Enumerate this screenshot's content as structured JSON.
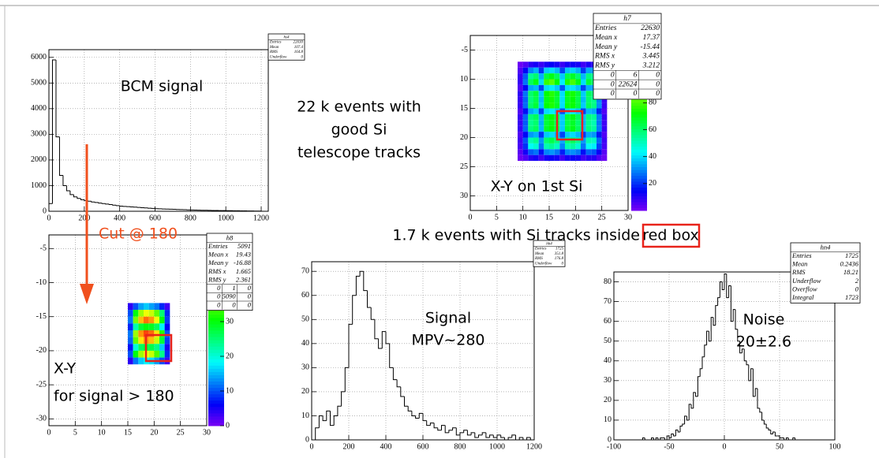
{
  "chart_data": [
    {
      "type": "histogram",
      "name": "hs4",
      "color": "#000000",
      "grid": true,
      "stats": {
        "rows": [
          {
            "label": "Entries",
            "value": 22630
          },
          {
            "label": "Mean",
            "value": 107.4
          },
          {
            "label": "RMS",
            "value": 164.8
          },
          {
            "label": "Underflow",
            "value": 0
          }
        ]
      },
      "annotations": [
        "BCM signal"
      ],
      "bins": [
        0,
        20,
        40,
        60,
        80,
        100,
        120,
        140,
        160,
        180,
        200,
        220,
        240,
        260,
        280,
        300,
        320,
        340,
        360,
        380,
        400,
        420,
        440,
        460,
        480,
        500,
        520,
        540,
        560,
        580,
        600,
        620,
        640,
        660,
        680,
        700,
        720,
        740,
        760,
        780,
        800,
        820,
        840,
        860,
        880,
        900,
        920,
        940,
        960,
        980,
        1000,
        1020,
        1040,
        1060,
        1080,
        1100,
        1120,
        1140,
        1160,
        1180,
        1200
      ],
      "values": [
        300,
        5900,
        2900,
        1400,
        1000,
        800,
        650,
        560,
        500,
        450,
        420,
        390,
        360,
        340,
        320,
        300,
        280,
        260,
        240,
        220,
        200,
        190,
        180,
        170,
        160,
        150,
        140,
        130,
        120,
        110,
        100,
        95,
        90,
        85,
        80,
        75,
        70,
        65,
        60,
        55,
        50,
        45,
        42,
        40,
        38,
        35,
        32,
        30,
        28,
        26,
        24,
        22,
        20,
        18,
        16,
        14,
        12,
        10,
        8,
        6
      ],
      "xlim": [
        0,
        1240
      ],
      "ylim": [
        0,
        6300
      ],
      "xticks": [
        0,
        200,
        400,
        600,
        800,
        1000,
        1200
      ],
      "yticks": [
        0,
        1000,
        2000,
        3000,
        4000,
        5000,
        6000
      ]
    },
    {
      "type": "heatmap",
      "name": "h7",
      "grid": true,
      "stats": {
        "rows": [
          {
            "label": "Entries",
            "value": 22630
          },
          {
            "label": "Mean x",
            "value": 17.37
          },
          {
            "label": "Mean y",
            "value": -15.44
          },
          {
            "label": "RMS x",
            "value": 3.445
          },
          {
            "label": "RMS y",
            "value": 3.212
          }
        ],
        "grid": [
          [
            0,
            6,
            0
          ],
          [
            0,
            22624,
            0
          ],
          [
            0,
            0,
            0
          ]
        ]
      },
      "annotations": [
        "X-Y on 1st Si"
      ],
      "xbins": [
        9,
        10,
        11,
        12,
        13,
        14,
        15,
        16,
        17,
        18,
        19,
        20,
        21,
        22,
        23,
        24,
        25,
        26
      ],
      "ybins": [
        -7,
        -8,
        -9,
        -10,
        -11,
        -12,
        -13,
        -14,
        -15,
        -16,
        -17,
        -18,
        -19,
        -20,
        -21,
        -22,
        -23,
        -24
      ],
      "z": [
        [
          2,
          5,
          10,
          12,
          8,
          12,
          14,
          12,
          8,
          12,
          13,
          12,
          7,
          11,
          10,
          6,
          2
        ],
        [
          5,
          15,
          30,
          35,
          20,
          38,
          40,
          36,
          22,
          37,
          39,
          35,
          21,
          34,
          32,
          18,
          5
        ],
        [
          8,
          25,
          55,
          60,
          35,
          65,
          70,
          62,
          38,
          64,
          68,
          60,
          36,
          58,
          55,
          30,
          8
        ],
        [
          8,
          28,
          62,
          70,
          40,
          78,
          82,
          72,
          42,
          75,
          80,
          70,
          40,
          66,
          60,
          32,
          8
        ],
        [
          5,
          15,
          34,
          36,
          22,
          40,
          42,
          38,
          24,
          40,
          41,
          37,
          22,
          35,
          33,
          18,
          5
        ],
        [
          9,
          28,
          60,
          66,
          38,
          72,
          76,
          68,
          40,
          70,
          74,
          66,
          38,
          62,
          58,
          30,
          8
        ],
        [
          8,
          26,
          58,
          64,
          36,
          70,
          74,
          66,
          40,
          68,
          72,
          64,
          36,
          60,
          56,
          30,
          8
        ],
        [
          8,
          27,
          60,
          66,
          38,
          72,
          75,
          68,
          40,
          70,
          73,
          65,
          38,
          62,
          57,
          31,
          8
        ],
        [
          5,
          16,
          34,
          38,
          22,
          40,
          42,
          38,
          24,
          40,
          42,
          38,
          22,
          36,
          34,
          18,
          5
        ],
        [
          8,
          26,
          58,
          62,
          36,
          68,
          72,
          64,
          38,
          66,
          70,
          62,
          36,
          58,
          55,
          29,
          8
        ],
        [
          8,
          25,
          56,
          60,
          35,
          66,
          70,
          62,
          38,
          64,
          68,
          60,
          35,
          56,
          52,
          28,
          7
        ],
        [
          8,
          26,
          58,
          62,
          36,
          68,
          72,
          64,
          38,
          66,
          70,
          62,
          36,
          58,
          54,
          29,
          8
        ],
        [
          5,
          15,
          32,
          35,
          20,
          38,
          40,
          36,
          22,
          38,
          40,
          36,
          21,
          34,
          32,
          17,
          5
        ],
        [
          7,
          24,
          52,
          56,
          32,
          60,
          64,
          58,
          34,
          60,
          62,
          56,
          32,
          52,
          50,
          26,
          7
        ],
        [
          6,
          20,
          44,
          48,
          28,
          52,
          55,
          50,
          30,
          52,
          54,
          48,
          28,
          44,
          42,
          22,
          6
        ],
        [
          4,
          12,
          25,
          28,
          16,
          30,
          32,
          28,
          18,
          30,
          31,
          28,
          16,
          26,
          24,
          13,
          4
        ],
        [
          2,
          5,
          10,
          12,
          7,
          12,
          13,
          12,
          7,
          12,
          13,
          12,
          7,
          10,
          10,
          5,
          2
        ]
      ],
      "xlim": [
        0,
        30
      ],
      "ylim": [
        -32.5,
        -2.5
      ],
      "zlim": [
        0,
        130
      ],
      "xticks": [
        0,
        5,
        10,
        15,
        20,
        25,
        30
      ],
      "yticks": [
        -5,
        {
          "value": -10,
          "label": "10"
        },
        {
          "value": -15,
          "label": "15"
        },
        {
          "value": -20,
          "label": "20"
        },
        {
          "value": -25,
          "label": "25"
        },
        {
          "value": -30,
          "label": "30"
        }
      ],
      "zticks": [
        20,
        40,
        60,
        80
      ]
    },
    {
      "type": "heatmap",
      "name": "h8",
      "grid": true,
      "stats": {
        "rows": [
          {
            "label": "Entries",
            "value": 5091
          },
          {
            "label": "Mean x",
            "value": 19.43
          },
          {
            "label": "Mean y",
            "value": -16.88
          },
          {
            "label": "RMS x",
            "value": 1.665
          },
          {
            "label": "RMS y",
            "value": 2.361
          }
        ],
        "grid": [
          [
            0,
            1,
            0
          ],
          [
            0,
            5090,
            0
          ],
          [
            0,
            0,
            0
          ]
        ]
      },
      "annotations": [
        "X-Y",
        "for signal > 180"
      ],
      "xbins": [
        15,
        16,
        17,
        18,
        19,
        20,
        21,
        22,
        23
      ],
      "ybins": [
        -13,
        -14,
        -15,
        -16,
        -17,
        -18,
        -19,
        -20,
        -21,
        -22
      ],
      "z": [
        [
          4,
          10,
          14,
          16,
          14,
          12,
          8,
          3
        ],
        [
          10,
          30,
          38,
          42,
          40,
          35,
          25,
          8
        ],
        [
          12,
          36,
          46,
          50,
          48,
          42,
          30,
          9
        ],
        [
          8,
          22,
          28,
          30,
          29,
          26,
          18,
          6
        ],
        [
          12,
          38,
          48,
          52,
          50,
          44,
          32,
          10
        ],
        [
          11,
          35,
          44,
          48,
          46,
          40,
          28,
          9
        ],
        [
          7,
          20,
          26,
          28,
          27,
          24,
          16,
          5
        ],
        [
          10,
          30,
          38,
          42,
          40,
          34,
          24,
          8
        ],
        [
          4,
          12,
          16,
          18,
          17,
          14,
          10,
          3
        ]
      ],
      "xlim": [
        0,
        30
      ],
      "ylim": [
        -31,
        -3
      ],
      "zlim": [
        0,
        55
      ],
      "xticks": [
        0,
        5,
        10,
        15,
        20,
        25,
        30
      ],
      "yticks": [
        -5,
        -10,
        -15,
        -20,
        -25,
        -30
      ],
      "zticks": [
        0,
        10,
        20,
        30,
        40,
        50
      ]
    },
    {
      "type": "histogram",
      "name": "hh4",
      "color": "#000000",
      "grid": true,
      "stats": {
        "rows": [
          {
            "label": "Entries",
            "value": 1725
          },
          {
            "label": "Mean",
            "value": 351.8
          },
          {
            "label": "RMS",
            "value": 176.8
          },
          {
            "label": "Underflow",
            "value": 0
          }
        ]
      },
      "annotations": [
        "Signal",
        "MPV~280"
      ],
      "bins": [
        0,
        20,
        40,
        60,
        80,
        100,
        120,
        140,
        160,
        180,
        200,
        220,
        240,
        260,
        280,
        300,
        320,
        340,
        360,
        380,
        400,
        420,
        440,
        460,
        480,
        500,
        520,
        540,
        560,
        580,
        600,
        620,
        640,
        660,
        680,
        700,
        720,
        740,
        760,
        780,
        800,
        820,
        840,
        860,
        880,
        900,
        920,
        940,
        960,
        980,
        1000,
        1020,
        1040,
        1060,
        1080,
        1100,
        1120,
        1140,
        1160,
        1180,
        1200
      ],
      "values": [
        0,
        5,
        10,
        8,
        12,
        6,
        10,
        14,
        20,
        30,
        48,
        60,
        68,
        70,
        62,
        55,
        50,
        42,
        38,
        45,
        40,
        30,
        25,
        22,
        18,
        14,
        12,
        10,
        9,
        11,
        8,
        6,
        7,
        5,
        4,
        6,
        3,
        4,
        5,
        2,
        3,
        4,
        2,
        3,
        1,
        2,
        3,
        1,
        2,
        1,
        2,
        1,
        0,
        1,
        2,
        0,
        1,
        0,
        1,
        0
      ],
      "xlim": [
        0,
        1200
      ],
      "ylim": [
        0,
        74
      ],
      "xticks": [
        0,
        200,
        400,
        600,
        800,
        1000,
        1200
      ],
      "yticks": [
        0,
        10,
        20,
        30,
        40,
        50,
        60,
        70
      ]
    },
    {
      "type": "histogram",
      "name": "hn4",
      "color": "#000000",
      "grid": true,
      "stats": {
        "rows": [
          {
            "label": "Entries",
            "value": 1725
          },
          {
            "label": "Mean",
            "value": 0.2436
          },
          {
            "label": "RMS",
            "value": 18.21
          },
          {
            "label": "Underflow",
            "value": 2
          },
          {
            "label": "Overflow",
            "value": 0
          },
          {
            "label": "Integral",
            "value": 1723
          }
        ]
      },
      "annotations": [
        "Noise",
        "20±2.6"
      ],
      "bins": [
        -100,
        -98,
        -96,
        -94,
        -92,
        -90,
        -88,
        -86,
        -84,
        -82,
        -80,
        -78,
        -76,
        -74,
        -72,
        -70,
        -68,
        -66,
        -64,
        -62,
        -60,
        -58,
        -56,
        -54,
        -52,
        -50,
        -48,
        -46,
        -44,
        -42,
        -40,
        -38,
        -36,
        -34,
        -32,
        -30,
        -28,
        -26,
        -24,
        -22,
        -20,
        -18,
        -16,
        -14,
        -12,
        -10,
        -8,
        -6,
        -4,
        -2,
        0,
        2,
        4,
        6,
        8,
        10,
        12,
        14,
        16,
        18,
        20,
        22,
        24,
        26,
        28,
        30,
        32,
        34,
        36,
        38,
        40,
        42,
        44,
        46,
        48,
        50,
        52,
        54,
        56,
        58,
        60,
        62,
        64,
        66,
        68,
        70,
        72,
        74,
        76,
        78,
        80,
        82,
        84,
        86,
        88,
        90,
        92,
        94,
        96,
        98,
        100
      ],
      "values": [
        0,
        0,
        0,
        0,
        0,
        0,
        0,
        0,
        0,
        0,
        0,
        0,
        0,
        1,
        0,
        0,
        0,
        1,
        0,
        1,
        0,
        1,
        1,
        0,
        2,
        1,
        3,
        2,
        5,
        4,
        7,
        8,
        12,
        10,
        18,
        16,
        24,
        22,
        32,
        36,
        42,
        48,
        55,
        50,
        62,
        58,
        68,
        72,
        80,
        76,
        84,
        72,
        78,
        60,
        66,
        56,
        50,
        44,
        46,
        40,
        38,
        30,
        36,
        22,
        26,
        16,
        14,
        10,
        8,
        6,
        5,
        3,
        4,
        2,
        2,
        1,
        1,
        0,
        1,
        0,
        0,
        1,
        0,
        0,
        0,
        0,
        0,
        0,
        0,
        0,
        0,
        0,
        0,
        0,
        0,
        0,
        0,
        0,
        0,
        0
      ],
      "xlim": [
        -100,
        100
      ],
      "ylim": [
        0,
        85
      ],
      "xticks": [
        -100,
        -50,
        0,
        50,
        100
      ],
      "yticks": [
        0,
        10,
        20,
        30,
        40,
        50,
        60,
        70,
        80
      ]
    }
  ],
  "slide": {
    "texts": [
      "22 k events with",
      "good Si",
      "telescope tracks"
    ],
    "cut": "Cut @ 180",
    "selection": "1.7 k events with Si tracks inside",
    "highlight": "red box"
  }
}
